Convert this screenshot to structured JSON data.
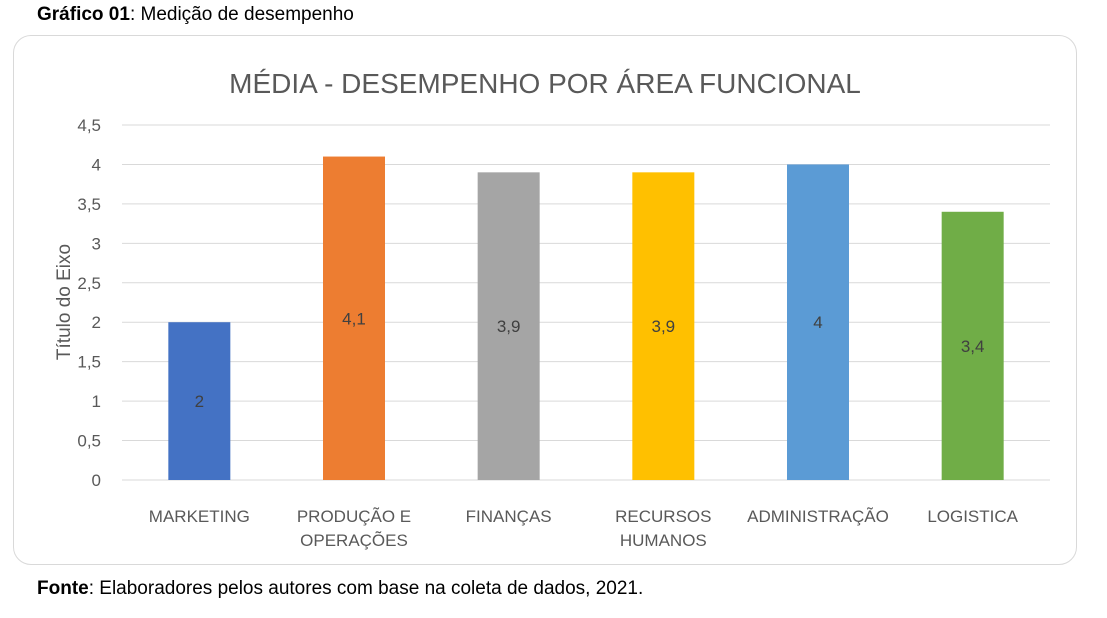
{
  "caption": {
    "label": "Gráfico 01",
    "text": ": Medição de desempenho"
  },
  "source": {
    "label": "Fonte",
    "text": ": Elaboradores pelos autores com base na coleta de dados, 2021."
  },
  "chart_data": {
    "type": "bar",
    "title": "MÉDIA - DESEMPENHO POR ÁREA FUNCIONAL",
    "xlabel": "",
    "ylabel": "Título do Eixo",
    "ylim": [
      0,
      4.5
    ],
    "yticks": [
      "0",
      "0,5",
      "1",
      "1,5",
      "2",
      "2,5",
      "3",
      "3,5",
      "4",
      "4,5"
    ],
    "grid": true,
    "categories": [
      [
        "MARKETING"
      ],
      [
        "PRODUÇÃO E",
        "OPERAÇÕES"
      ],
      [
        "FINANÇAS"
      ],
      [
        "RECURSOS",
        "HUMANOS"
      ],
      [
        "ADMINISTRAÇÃO"
      ],
      [
        "LOGISTICA"
      ]
    ],
    "values": [
      2,
      4.1,
      3.9,
      3.9,
      4,
      3.4
    ],
    "value_labels": [
      "2",
      "4,1",
      "3,9",
      "3,9",
      "4",
      "3,4"
    ],
    "colors": [
      "#4472c4",
      "#ed7d31",
      "#a5a5a5",
      "#ffc000",
      "#5b9bd5",
      "#70ad47"
    ],
    "grid_color": "#d9d9d9",
    "text_color": "#595959"
  }
}
